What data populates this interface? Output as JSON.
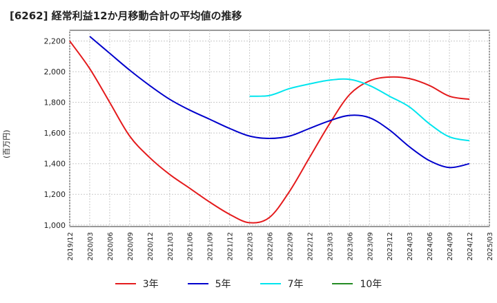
{
  "title": "[6262]  経常利益12か月移動合計の平均値の推移",
  "chart_data": {
    "type": "line",
    "ylabel": "(百万円)",
    "ylim": [
      990,
      2270
    ],
    "yticks": [
      1000,
      1200,
      1400,
      1600,
      1800,
      2000,
      2200
    ],
    "ytick_labels": [
      "1,000",
      "1,200",
      "1,400",
      "1,600",
      "1,800",
      "2,000",
      "2,200"
    ],
    "xticks": [
      "2019/12",
      "2020/03",
      "2020/06",
      "2020/09",
      "2020/12",
      "2021/03",
      "2021/06",
      "2021/09",
      "2021/12",
      "2022/03",
      "2022/06",
      "2022/09",
      "2022/12",
      "2023/03",
      "2023/06",
      "2023/09",
      "2023/12",
      "2024/03",
      "2024/06",
      "2024/09",
      "2024/12",
      "2025/03"
    ],
    "grid": true,
    "legend_position": "bottom",
    "series": [
      {
        "name": "3年",
        "color": "#e41a1c",
        "start_index": 0,
        "values": [
          2200,
          2020,
          1800,
          1580,
          1440,
          1330,
          1240,
          1150,
          1070,
          1015,
          1050,
          1220,
          1440,
          1660,
          1850,
          1940,
          1965,
          1955,
          1910,
          1840,
          1820
        ]
      },
      {
        "name": "5年",
        "color": "#0000cc",
        "start_index": 1,
        "values": [
          2230,
          2120,
          2010,
          1910,
          1820,
          1750,
          1690,
          1630,
          1580,
          1565,
          1580,
          1630,
          1680,
          1715,
          1700,
          1620,
          1510,
          1420,
          1375,
          1400
        ]
      },
      {
        "name": "7年",
        "color": "#00e5ee",
        "start_index": 9,
        "values": [
          1840,
          1845,
          1890,
          1920,
          1945,
          1950,
          1910,
          1840,
          1770,
          1660,
          1575,
          1550
        ]
      },
      {
        "name": "10年",
        "color": "#228b22",
        "start_index": 0,
        "values": []
      }
    ]
  }
}
